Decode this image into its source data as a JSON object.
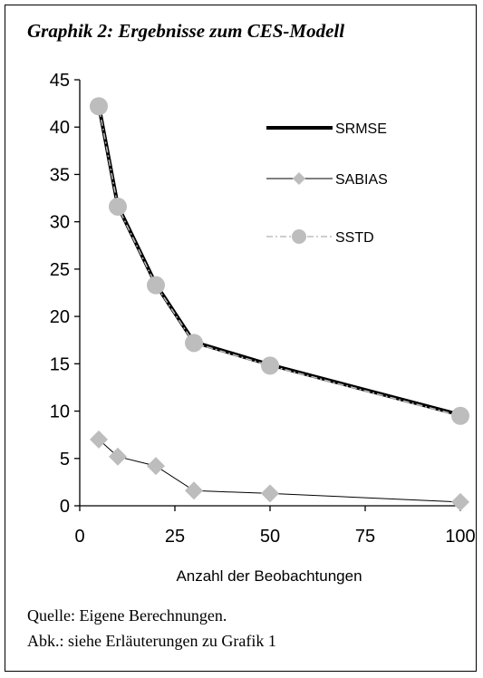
{
  "title": "Graphik 2: Ergebnisse zum CES-Modell",
  "source": "Quelle: Eigene Berechnungen.",
  "abbreviation": "Abk.: siehe Erläuterungen zu Grafik 1",
  "chart_data": {
    "type": "line",
    "title": "Graphik 2: Ergebnisse zum CES-Modell",
    "xlabel": "Anzahl der Beobachtungen",
    "ylabel": "",
    "x": [
      5,
      10,
      20,
      30,
      50,
      100
    ],
    "xlim": [
      0,
      100
    ],
    "ylim": [
      0,
      45
    ],
    "xticks": [
      0,
      25,
      50,
      75,
      100
    ],
    "yticks": [
      0,
      5,
      10,
      15,
      20,
      25,
      30,
      35,
      40,
      45
    ],
    "grid": false,
    "legend_position": "top-right",
    "series": [
      {
        "name": "SRMSE",
        "values": [
          42.3,
          31.7,
          23.4,
          17.3,
          14.9,
          9.6
        ],
        "color": "#000000",
        "style": "thick-solid"
      },
      {
        "name": "SABIAS",
        "values": [
          7.0,
          5.2,
          4.2,
          1.6,
          1.3,
          0.4
        ],
        "color": "#000000",
        "marker": "diamond",
        "marker_color": "#bdbdbd"
      },
      {
        "name": "SSTD",
        "values": [
          42.2,
          31.6,
          23.3,
          17.2,
          14.8,
          9.5
        ],
        "color": "#bdbdbd",
        "style": "dash-dot",
        "marker": "circle",
        "marker_color": "#bdbdbd"
      }
    ]
  }
}
